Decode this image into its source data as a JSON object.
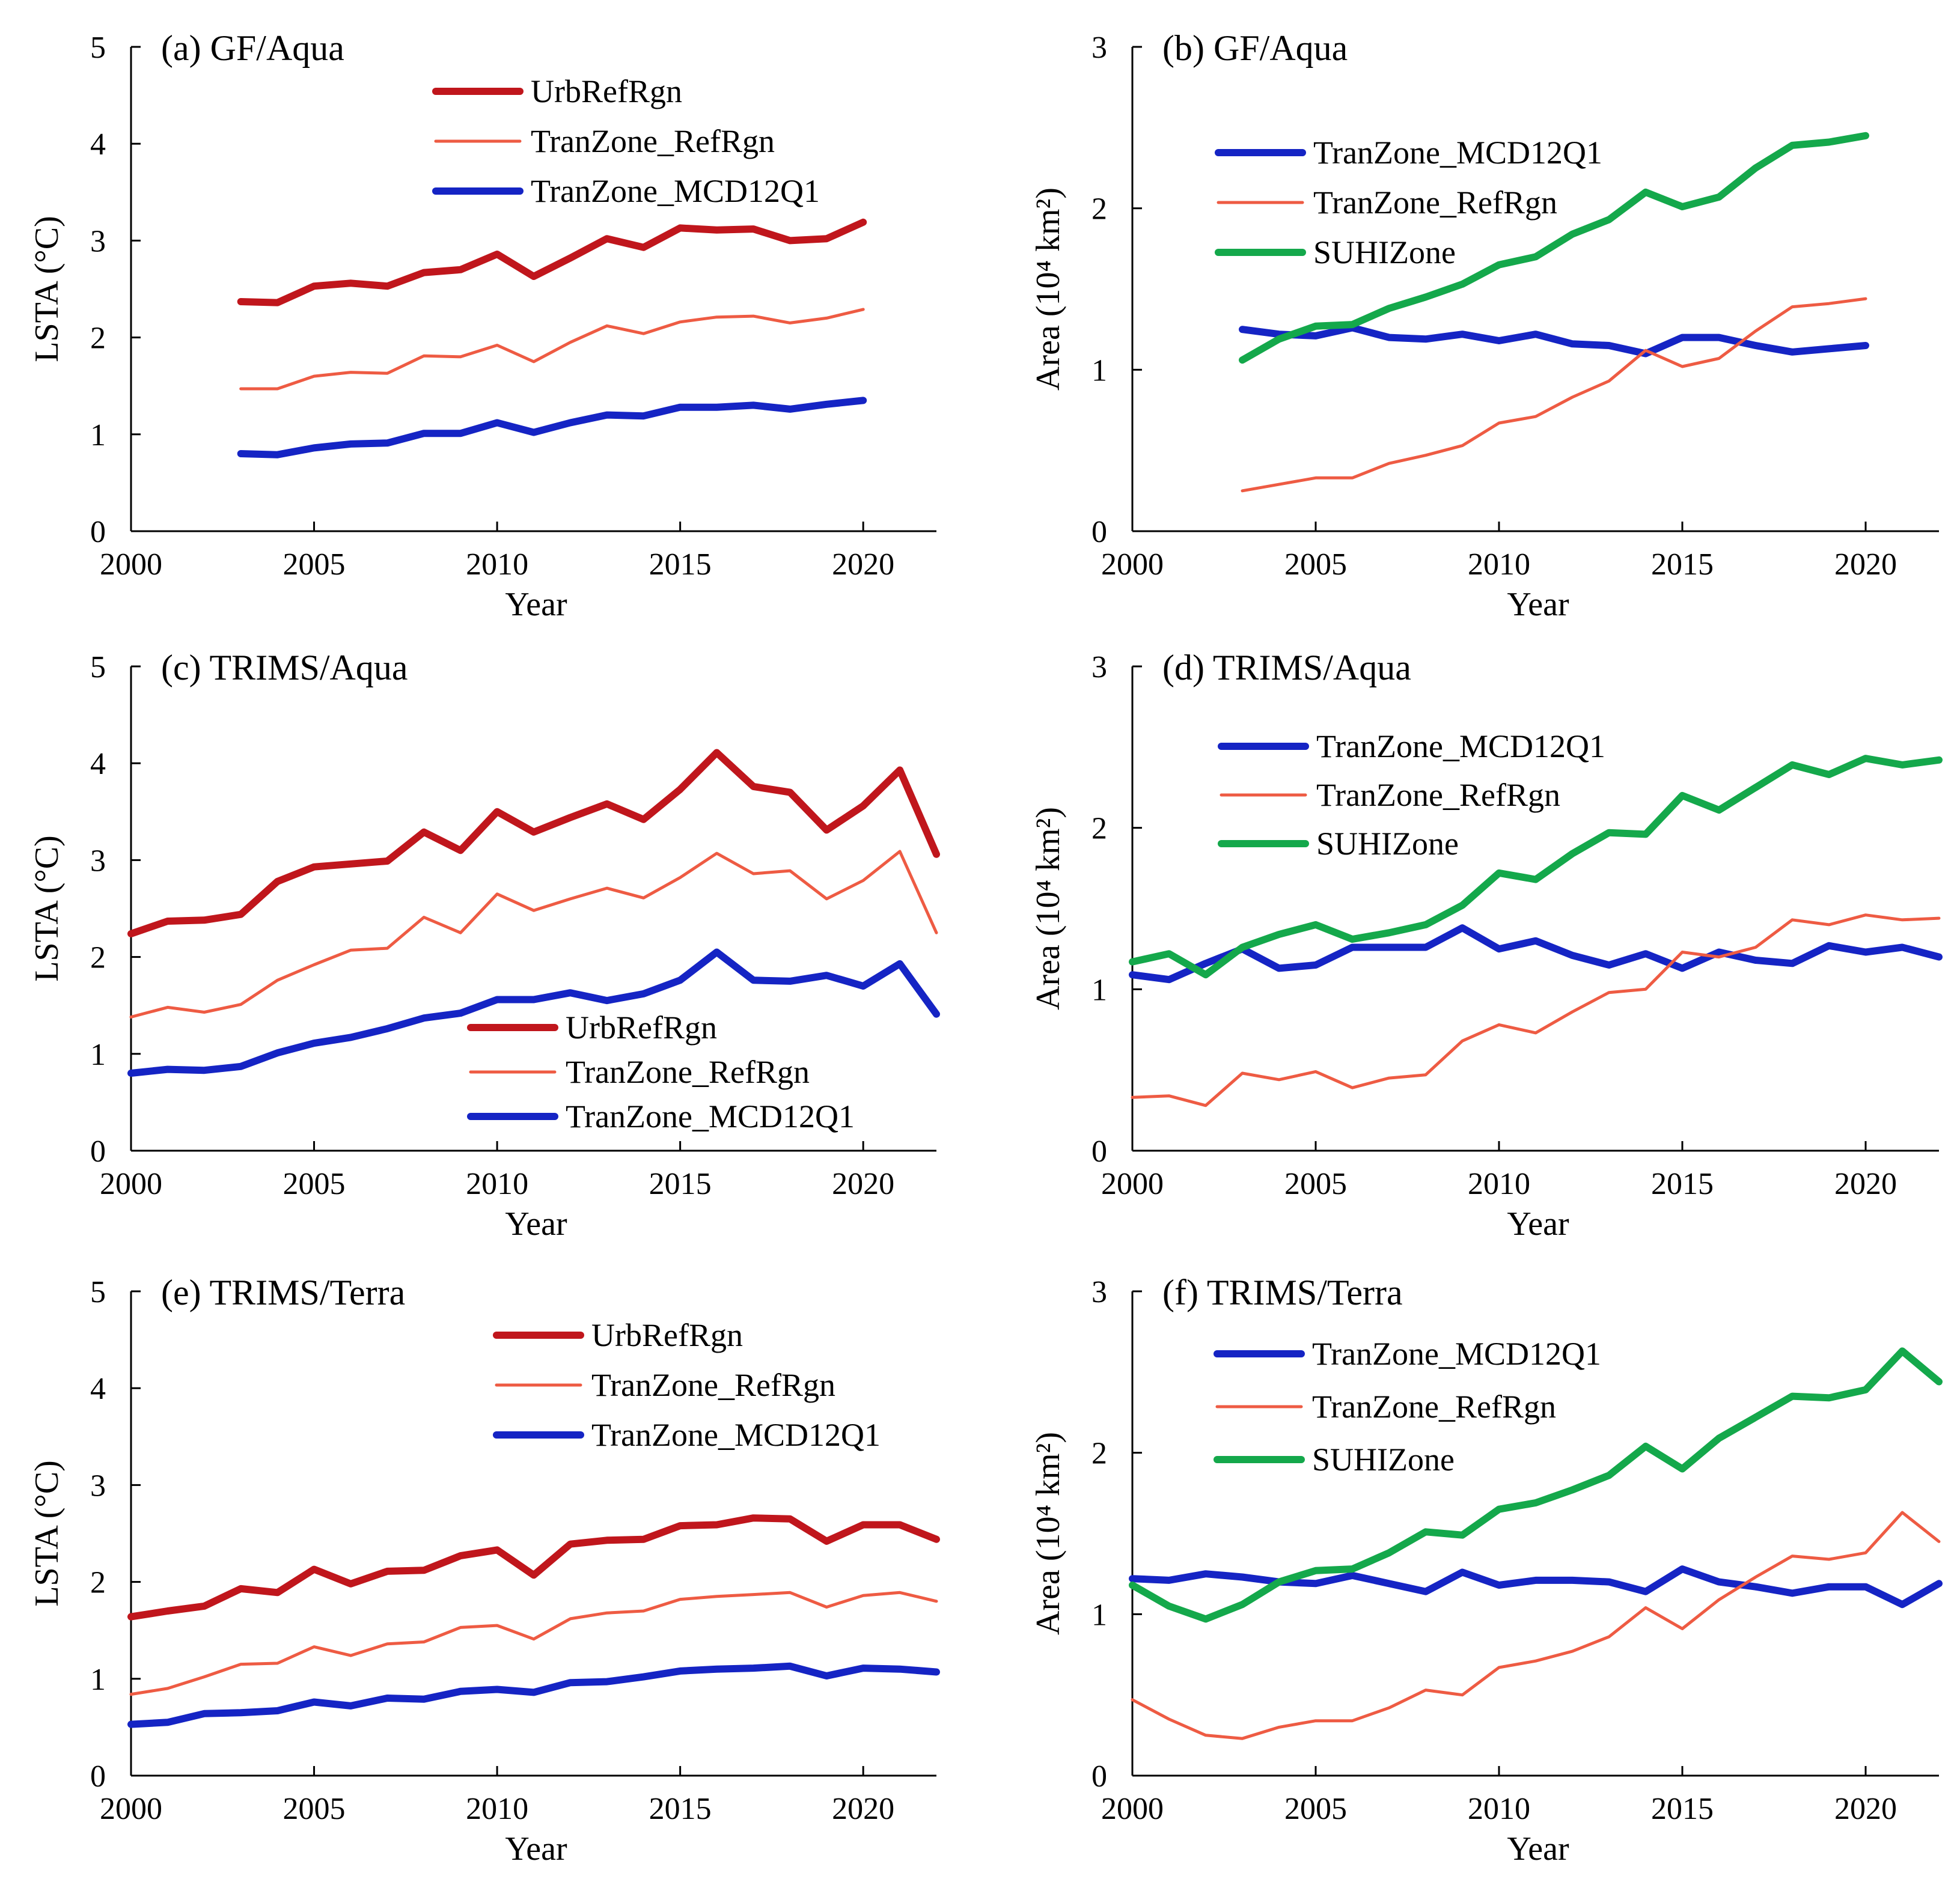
{
  "figure": {
    "background": "#ffffff"
  },
  "series_styles": {
    "UrbRefRgn": {
      "color": "#c0161c",
      "thick": true
    },
    "TranZone_RefRgn": {
      "color": "#ee5b43",
      "thick": false
    },
    "TranZone_MCD12Q1": {
      "color": "#1524c4",
      "thick": true
    },
    "SUHIZone": {
      "color": "#14a84b",
      "thick": true
    }
  },
  "chart_data": [
    {
      "id": "a",
      "type": "line",
      "title": "(a) GF/Aqua",
      "xlabel": "Year",
      "ylabel": "LSTA (°C)",
      "xlim": [
        2000,
        2022
      ],
      "ylim": [
        0,
        5
      ],
      "xticks": [
        2000,
        2005,
        2010,
        2015,
        2020
      ],
      "yticks": [
        0,
        1,
        2,
        3,
        4,
        5
      ],
      "x": [
        2003,
        2004,
        2005,
        2006,
        2007,
        2008,
        2009,
        2010,
        2011,
        2012,
        2013,
        2014,
        2015,
        2016,
        2017,
        2018,
        2019,
        2020
      ],
      "series": [
        {
          "name": "UrbRefRgn",
          "values": [
            2.37,
            2.36,
            2.53,
            2.56,
            2.53,
            2.67,
            2.7,
            2.86,
            2.63,
            2.82,
            3.02,
            2.93,
            3.13,
            3.11,
            3.12,
            3.0,
            3.02,
            3.19
          ]
        },
        {
          "name": "TranZone_RefRgn",
          "values": [
            1.47,
            1.47,
            1.6,
            1.64,
            1.63,
            1.81,
            1.8,
            1.92,
            1.75,
            1.95,
            2.12,
            2.04,
            2.16,
            2.21,
            2.22,
            2.15,
            2.2,
            2.29
          ]
        },
        {
          "name": "TranZone_MCD12Q1",
          "values": [
            0.8,
            0.79,
            0.86,
            0.9,
            0.91,
            1.01,
            1.01,
            1.12,
            1.02,
            1.12,
            1.2,
            1.19,
            1.28,
            1.28,
            1.3,
            1.26,
            1.31,
            1.35
          ]
        }
      ],
      "legend": {
        "entries": [
          "UrbRefRgn",
          "TranZone_RefRgn",
          "TranZone_MCD12Q1"
        ],
        "placement": "top-center"
      }
    },
    {
      "id": "b",
      "type": "line",
      "title": "(b) GF/Aqua",
      "xlabel": "Year",
      "ylabel": "Area (10⁴ km²)",
      "xlim": [
        2000,
        2022
      ],
      "ylim": [
        0,
        3
      ],
      "xticks": [
        2000,
        2005,
        2010,
        2015,
        2020
      ],
      "yticks": [
        0,
        1,
        2,
        3
      ],
      "x": [
        2003,
        2004,
        2005,
        2006,
        2007,
        2008,
        2009,
        2010,
        2011,
        2012,
        2013,
        2014,
        2015,
        2016,
        2017,
        2018,
        2019,
        2020
      ],
      "series": [
        {
          "name": "TranZone_MCD12Q1",
          "values": [
            1.25,
            1.22,
            1.21,
            1.26,
            1.2,
            1.19,
            1.22,
            1.18,
            1.22,
            1.16,
            1.15,
            1.1,
            1.2,
            1.2,
            1.15,
            1.11,
            1.13,
            1.15
          ]
        },
        {
          "name": "TranZone_RefRgn",
          "values": [
            0.25,
            0.29,
            0.33,
            0.33,
            0.42,
            0.47,
            0.53,
            0.67,
            0.71,
            0.83,
            0.93,
            1.12,
            1.02,
            1.07,
            1.24,
            1.39,
            1.41,
            1.44
          ]
        },
        {
          "name": "SUHIZone",
          "values": [
            1.06,
            1.19,
            1.27,
            1.28,
            1.38,
            1.45,
            1.53,
            1.65,
            1.7,
            1.84,
            1.93,
            2.1,
            2.01,
            2.07,
            2.25,
            2.39,
            2.41,
            2.45
          ]
        }
      ],
      "legend": {
        "entries": [
          "TranZone_MCD12Q1",
          "TranZone_RefRgn",
          "SUHIZone"
        ],
        "placement": "top-left"
      }
    },
    {
      "id": "c",
      "type": "line",
      "title": "(c) TRIMS/Aqua",
      "xlabel": "Year",
      "ylabel": "LSTA (°C)",
      "xlim": [
        2000,
        2022
      ],
      "ylim": [
        0,
        5
      ],
      "xticks": [
        2000,
        2005,
        2010,
        2015,
        2020
      ],
      "yticks": [
        0,
        1,
        2,
        3,
        4,
        5
      ],
      "x": [
        2000,
        2001,
        2002,
        2003,
        2004,
        2005,
        2006,
        2007,
        2008,
        2009,
        2010,
        2011,
        2012,
        2013,
        2014,
        2015,
        2016,
        2017,
        2018,
        2019,
        2020,
        2021,
        2022
      ],
      "series": [
        {
          "name": "UrbRefRgn",
          "values": [
            2.24,
            2.37,
            2.38,
            2.44,
            2.78,
            2.93,
            2.96,
            2.99,
            3.29,
            3.1,
            3.5,
            3.29,
            3.44,
            3.58,
            3.42,
            3.73,
            4.11,
            3.76,
            3.7,
            3.31,
            3.56,
            3.93,
            3.06
          ]
        },
        {
          "name": "TranZone_RefRgn",
          "values": [
            1.38,
            1.48,
            1.43,
            1.51,
            1.76,
            1.92,
            2.07,
            2.09,
            2.41,
            2.25,
            2.65,
            2.48,
            2.6,
            2.71,
            2.61,
            2.82,
            3.07,
            2.86,
            2.89,
            2.6,
            2.79,
            3.09,
            2.25
          ]
        },
        {
          "name": "TranZone_MCD12Q1",
          "values": [
            0.8,
            0.84,
            0.83,
            0.87,
            1.01,
            1.11,
            1.17,
            1.26,
            1.37,
            1.42,
            1.56,
            1.56,
            1.63,
            1.55,
            1.62,
            1.76,
            2.05,
            1.76,
            1.75,
            1.81,
            1.7,
            1.93,
            1.41
          ]
        }
      ],
      "legend": {
        "entries": [
          "UrbRefRgn",
          "TranZone_RefRgn",
          "TranZone_MCD12Q1"
        ],
        "placement": "bottom-right"
      }
    },
    {
      "id": "d",
      "type": "line",
      "title": "(d) TRIMS/Aqua",
      "xlabel": "Year",
      "ylabel": "Area (10⁴ km²)",
      "xlim": [
        2000,
        2022
      ],
      "ylim": [
        0,
        3
      ],
      "xticks": [
        2000,
        2005,
        2010,
        2015,
        2020
      ],
      "yticks": [
        0,
        1,
        2,
        3
      ],
      "x": [
        2000,
        2001,
        2002,
        2003,
        2004,
        2005,
        2006,
        2007,
        2008,
        2009,
        2010,
        2011,
        2012,
        2013,
        2014,
        2015,
        2016,
        2017,
        2018,
        2019,
        2020,
        2021,
        2022
      ],
      "series": [
        {
          "name": "TranZone_MCD12Q1",
          "values": [
            1.09,
            1.06,
            1.16,
            1.25,
            1.13,
            1.15,
            1.26,
            1.26,
            1.26,
            1.38,
            1.25,
            1.3,
            1.21,
            1.15,
            1.22,
            1.13,
            1.23,
            1.18,
            1.16,
            1.27,
            1.23,
            1.26,
            1.2
          ]
        },
        {
          "name": "TranZone_RefRgn",
          "values": [
            0.33,
            0.34,
            0.28,
            0.48,
            0.44,
            0.49,
            0.39,
            0.45,
            0.47,
            0.68,
            0.78,
            0.73,
            0.86,
            0.98,
            1.0,
            1.23,
            1.2,
            1.26,
            1.43,
            1.4,
            1.46,
            1.43,
            1.44
          ]
        },
        {
          "name": "SUHIZone",
          "values": [
            1.17,
            1.22,
            1.09,
            1.26,
            1.34,
            1.4,
            1.31,
            1.35,
            1.4,
            1.52,
            1.72,
            1.68,
            1.84,
            1.97,
            1.96,
            2.2,
            2.11,
            2.25,
            2.39,
            2.33,
            2.43,
            2.39,
            2.42
          ]
        }
      ],
      "legend": {
        "entries": [
          "TranZone_MCD12Q1",
          "TranZone_RefRgn",
          "SUHIZone"
        ],
        "placement": "top-left"
      }
    },
    {
      "id": "e",
      "type": "line",
      "title": "(e) TRIMS/Terra",
      "xlabel": "Year",
      "ylabel": "LSTA (°C)",
      "xlim": [
        2000,
        2022
      ],
      "ylim": [
        0,
        5
      ],
      "xticks": [
        2000,
        2005,
        2010,
        2015,
        2020
      ],
      "yticks": [
        0,
        1,
        2,
        3,
        4,
        5
      ],
      "x": [
        2000,
        2001,
        2002,
        2003,
        2004,
        2005,
        2006,
        2007,
        2008,
        2009,
        2010,
        2011,
        2012,
        2013,
        2014,
        2015,
        2016,
        2017,
        2018,
        2019,
        2020,
        2021,
        2022
      ],
      "series": [
        {
          "name": "UrbRefRgn",
          "values": [
            1.64,
            1.7,
            1.75,
            1.93,
            1.89,
            2.13,
            1.98,
            2.11,
            2.12,
            2.27,
            2.33,
            2.07,
            2.39,
            2.43,
            2.44,
            2.58,
            2.59,
            2.66,
            2.65,
            2.42,
            2.59,
            2.59,
            2.44
          ]
        },
        {
          "name": "TranZone_RefRgn",
          "values": [
            0.84,
            0.9,
            1.02,
            1.15,
            1.16,
            1.33,
            1.24,
            1.36,
            1.38,
            1.53,
            1.55,
            1.41,
            1.62,
            1.68,
            1.7,
            1.82,
            1.85,
            1.87,
            1.89,
            1.74,
            1.86,
            1.89,
            1.8
          ]
        },
        {
          "name": "TranZone_MCD12Q1",
          "values": [
            0.53,
            0.55,
            0.64,
            0.65,
            0.67,
            0.76,
            0.72,
            0.8,
            0.79,
            0.87,
            0.89,
            0.86,
            0.96,
            0.97,
            1.02,
            1.08,
            1.1,
            1.11,
            1.13,
            1.03,
            1.11,
            1.1,
            1.07
          ]
        }
      ],
      "legend": {
        "entries": [
          "UrbRefRgn",
          "TranZone_RefRgn",
          "TranZone_MCD12Q1"
        ],
        "placement": "top-right"
      }
    },
    {
      "id": "f",
      "type": "line",
      "title": "(f) TRIMS/Terra",
      "xlabel": "Year",
      "ylabel": "Area (10⁴ km²)",
      "xlim": [
        2000,
        2022
      ],
      "ylim": [
        0,
        3
      ],
      "xticks": [
        2000,
        2005,
        2010,
        2015,
        2020
      ],
      "yticks": [
        0,
        1,
        2,
        3
      ],
      "x": [
        2000,
        2001,
        2002,
        2003,
        2004,
        2005,
        2006,
        2007,
        2008,
        2009,
        2010,
        2011,
        2012,
        2013,
        2014,
        2015,
        2016,
        2017,
        2018,
        2019,
        2020,
        2021,
        2022
      ],
      "series": [
        {
          "name": "TranZone_MCD12Q1",
          "values": [
            1.22,
            1.21,
            1.25,
            1.23,
            1.2,
            1.19,
            1.24,
            1.19,
            1.14,
            1.26,
            1.18,
            1.21,
            1.21,
            1.2,
            1.14,
            1.28,
            1.2,
            1.17,
            1.13,
            1.17,
            1.17,
            1.06,
            1.19
          ]
        },
        {
          "name": "TranZone_RefRgn",
          "values": [
            0.47,
            0.35,
            0.25,
            0.23,
            0.3,
            0.34,
            0.34,
            0.42,
            0.53,
            0.5,
            0.67,
            0.71,
            0.77,
            0.86,
            1.04,
            0.91,
            1.09,
            1.23,
            1.36,
            1.34,
            1.38,
            1.63,
            1.45
          ]
        },
        {
          "name": "SUHIZone",
          "values": [
            1.18,
            1.05,
            0.97,
            1.06,
            1.2,
            1.27,
            1.28,
            1.38,
            1.51,
            1.49,
            1.65,
            1.69,
            1.77,
            1.86,
            2.04,
            1.9,
            2.09,
            2.22,
            2.35,
            2.34,
            2.39,
            2.63,
            2.44
          ]
        }
      ],
      "legend": {
        "entries": [
          "TranZone_MCD12Q1",
          "TranZone_RefRgn",
          "SUHIZone"
        ],
        "placement": "top-left"
      }
    }
  ]
}
